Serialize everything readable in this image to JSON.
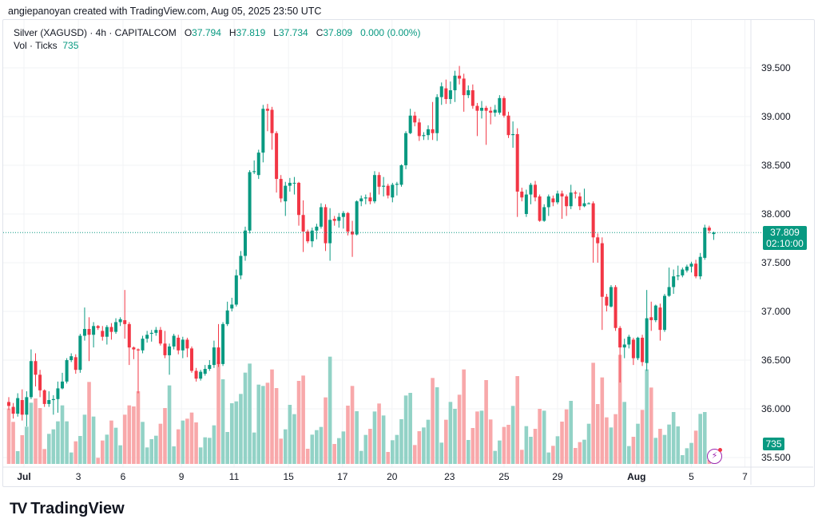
{
  "credit": "angiepanoyan created with TradingView.com, Aug 05, 2025 23:50 UTC",
  "legend": {
    "symbol": "Silver (XAGUSD) · 4h · CAPITALCOM",
    "o_label": "O",
    "o": "37.794",
    "h_label": "H",
    "h": "37.819",
    "l_label": "L",
    "l": "37.734",
    "c_label": "C",
    "c": "37.809",
    "change": "0.000 (0.00%)",
    "vol_label": "Vol · Ticks",
    "vol": "735"
  },
  "price_badge": {
    "price": "37.809",
    "countdown": "02:10:00"
  },
  "volume_badge": "735",
  "logo_text": "TradingView",
  "colors": {
    "up": "#089981",
    "down": "#f23645",
    "up_vol": "#92d2c6",
    "down_vol": "#f8a8aa",
    "grid": "#f2f3f5",
    "last_line": "#089981",
    "lightning": "#9c27b0"
  },
  "chart_data": {
    "type": "candlestick",
    "title": "Silver (XAGUSD) · 4h · CAPITALCOM",
    "ylim": [
      35.5,
      39.75
    ],
    "y_ticks": [
      "39.500",
      "39.000",
      "38.500",
      "38.000",
      "37.500",
      "37.000",
      "36.500",
      "36.000",
      "35.500"
    ],
    "x_ticks": [
      {
        "label": "Jul",
        "bold": true,
        "at_bar": 3.4
      },
      {
        "label": "3",
        "at_bar": 15.6
      },
      {
        "label": "6",
        "at_bar": 25.6
      },
      {
        "label": "9",
        "at_bar": 38.7
      },
      {
        "label": "11",
        "at_bar": 50.5
      },
      {
        "label": "15",
        "at_bar": 62.7
      },
      {
        "label": "17",
        "at_bar": 74.8
      },
      {
        "label": "20",
        "at_bar": 85.9
      },
      {
        "label": "23",
        "at_bar": 98.8
      },
      {
        "label": "25",
        "at_bar": 111
      },
      {
        "label": "29",
        "at_bar": 123
      },
      {
        "label": "Aug",
        "bold": true,
        "at_bar": 140.7
      },
      {
        "label": "5",
        "at_bar": 153
      },
      {
        "label": "7",
        "at_bar": 165
      }
    ],
    "volume_unit": "ticks",
    "last_price": 37.809,
    "candles_fields": [
      "open",
      "high",
      "low",
      "close",
      "volume"
    ],
    "candles": [
      [
        36.07,
        36.12,
        35.99,
        36.03,
        5200
      ],
      [
        36.02,
        36.06,
        35.9,
        35.95,
        3950
      ],
      [
        35.95,
        36.16,
        35.92,
        36.11,
        1200
      ],
      [
        36.09,
        36.2,
        35.88,
        35.94,
        2700
      ],
      [
        35.94,
        36.18,
        35.82,
        36.12,
        3500
      ],
      [
        36.12,
        36.61,
        36.1,
        36.49,
        5750
      ],
      [
        36.49,
        36.57,
        36.23,
        36.35,
        6150
      ],
      [
        36.35,
        36.4,
        36.12,
        36.19,
        5250
      ],
      [
        36.19,
        36.2,
        36.02,
        36.05,
        1400
      ],
      [
        36.05,
        36.18,
        36.02,
        36.09,
        2825
      ],
      [
        36.09,
        36.14,
        35.94,
        36.1,
        3250
      ],
      [
        36.1,
        36.28,
        35.96,
        36.21,
        4000
      ],
      [
        36.21,
        36.37,
        36.2,
        36.28,
        5500
      ],
      [
        36.28,
        36.52,
        36.26,
        36.5,
        4000
      ],
      [
        36.5,
        36.57,
        36.48,
        36.54,
        1075
      ],
      [
        36.53,
        36.56,
        36.36,
        36.4,
        2125
      ],
      [
        36.4,
        36.77,
        36.37,
        36.75,
        2625
      ],
      [
        36.75,
        37.04,
        36.7,
        36.82,
        4625
      ],
      [
        36.82,
        36.94,
        36.49,
        36.76,
        7700
      ],
      [
        36.76,
        36.89,
        36.63,
        36.85,
        4450
      ],
      [
        36.85,
        36.86,
        36.81,
        36.83,
        575
      ],
      [
        36.8,
        36.85,
        36.7,
        36.74,
        2200
      ],
      [
        36.74,
        36.86,
        36.66,
        36.84,
        2750
      ],
      [
        36.84,
        36.88,
        36.71,
        36.79,
        4075
      ],
      [
        36.79,
        36.93,
        36.77,
        36.89,
        3400
      ],
      [
        36.89,
        36.94,
        36.85,
        36.92,
        1750
      ],
      [
        36.91,
        37.22,
        36.72,
        36.87,
        4625
      ],
      [
        36.87,
        36.89,
        36.45,
        36.63,
        5500
      ],
      [
        36.63,
        36.64,
        36.51,
        36.61,
        5400
      ],
      [
        36.61,
        36.62,
        36.16,
        36.6,
        6825
      ],
      [
        36.6,
        36.75,
        36.57,
        36.72,
        3950
      ],
      [
        36.72,
        36.8,
        36.68,
        36.76,
        1550
      ],
      [
        36.77,
        36.81,
        36.69,
        36.78,
        2325
      ],
      [
        36.78,
        36.84,
        36.75,
        36.81,
        2650
      ],
      [
        36.81,
        36.84,
        36.65,
        36.67,
        3775
      ],
      [
        36.67,
        36.8,
        36.52,
        36.55,
        5250
      ],
      [
        36.55,
        36.67,
        36.35,
        36.64,
        7375
      ],
      [
        36.64,
        36.77,
        36.61,
        36.75,
        1650
      ],
      [
        36.73,
        36.76,
        36.56,
        36.6,
        3250
      ],
      [
        36.6,
        36.74,
        36.52,
        36.71,
        4075
      ],
      [
        36.71,
        36.73,
        36.53,
        36.62,
        4250
      ],
      [
        36.62,
        36.64,
        36.37,
        36.39,
        4825
      ],
      [
        36.39,
        36.42,
        36.28,
        36.31,
        3900
      ],
      [
        36.31,
        36.4,
        36.29,
        36.38,
        1550
      ],
      [
        36.36,
        36.45,
        36.34,
        36.41,
        2500
      ],
      [
        36.41,
        36.5,
        36.39,
        36.45,
        2450
      ],
      [
        36.45,
        36.7,
        36.42,
        36.63,
        3625
      ],
      [
        36.63,
        36.87,
        36.43,
        36.46,
        9575
      ],
      [
        36.46,
        36.89,
        36.44,
        36.87,
        7950
      ],
      [
        36.87,
        37.1,
        36.85,
        37.01,
        3000
      ],
      [
        37.03,
        37.14,
        37.0,
        37.07,
        5700
      ],
      [
        37.07,
        37.43,
        37.05,
        37.37,
        5875
      ],
      [
        37.37,
        37.62,
        37.33,
        37.57,
        6575
      ],
      [
        37.57,
        37.87,
        37.52,
        37.83,
        8575
      ],
      [
        37.83,
        38.45,
        37.8,
        38.43,
        9425
      ],
      [
        38.43,
        38.55,
        38.41,
        38.44,
        2950
      ],
      [
        38.4,
        38.66,
        38.36,
        38.63,
        7450
      ],
      [
        38.63,
        39.12,
        38.53,
        39.08,
        7325
      ],
      [
        39.08,
        39.13,
        38.85,
        39.06,
        7625
      ],
      [
        39.07,
        39.1,
        38.66,
        38.83,
        8875
      ],
      [
        38.83,
        38.85,
        38.22,
        38.36,
        7125
      ],
      [
        38.36,
        38.4,
        38.12,
        38.16,
        2375
      ],
      [
        38.13,
        38.33,
        37.98,
        38.29,
        3250
      ],
      [
        38.29,
        38.37,
        38.23,
        38.32,
        5550
      ],
      [
        38.32,
        38.38,
        38.2,
        38.32,
        4675
      ],
      [
        38.32,
        38.33,
        37.88,
        37.99,
        7800
      ],
      [
        37.99,
        38.14,
        37.61,
        37.82,
        8300
      ],
      [
        37.82,
        37.84,
        37.7,
        37.72,
        1425
      ],
      [
        37.72,
        37.86,
        37.66,
        37.83,
        2750
      ],
      [
        37.83,
        37.9,
        37.74,
        37.87,
        3175
      ],
      [
        37.87,
        38.11,
        37.85,
        38.07,
        3475
      ],
      [
        38.07,
        38.1,
        37.62,
        37.7,
        6250
      ],
      [
        37.7,
        38.06,
        37.52,
        37.94,
        10075
      ],
      [
        37.95,
        37.98,
        37.88,
        37.93,
        1875
      ],
      [
        37.93,
        38.01,
        37.86,
        37.97,
        2425
      ],
      [
        37.97,
        38.03,
        37.85,
        38.01,
        3050
      ],
      [
        38.01,
        38.02,
        37.78,
        37.82,
        5475
      ],
      [
        37.82,
        37.93,
        37.56,
        37.79,
        7325
      ],
      [
        37.79,
        38.14,
        37.78,
        38.13,
        4950
      ],
      [
        38.13,
        38.19,
        38.08,
        38.16,
        1225
      ],
      [
        38.16,
        38.2,
        38.1,
        38.17,
        2725
      ],
      [
        38.17,
        38.22,
        38.1,
        38.13,
        3300
      ],
      [
        38.13,
        38.44,
        38.11,
        38.4,
        4925
      ],
      [
        38.4,
        38.43,
        38.2,
        38.28,
        5675
      ],
      [
        38.28,
        38.38,
        38.18,
        38.29,
        4550
      ],
      [
        38.29,
        38.31,
        38.16,
        38.19,
        1125
      ],
      [
        38.17,
        38.32,
        38.12,
        38.3,
        2225
      ],
      [
        38.3,
        38.33,
        38.19,
        38.31,
        2725
      ],
      [
        38.3,
        38.51,
        38.28,
        38.5,
        4200
      ],
      [
        38.5,
        38.85,
        38.46,
        38.83,
        6425
      ],
      [
        38.83,
        39.08,
        38.82,
        39.01,
        6675
      ],
      [
        39.01,
        39.05,
        38.9,
        38.94,
        1775
      ],
      [
        38.94,
        38.98,
        38.75,
        38.8,
        3075
      ],
      [
        38.8,
        38.84,
        38.76,
        38.81,
        3425
      ],
      [
        38.81,
        38.91,
        38.76,
        38.87,
        4150
      ],
      [
        38.87,
        39.15,
        38.76,
        38.83,
        8075
      ],
      [
        38.83,
        39.23,
        38.75,
        39.2,
        7200
      ],
      [
        39.2,
        39.35,
        39.12,
        39.31,
        2000
      ],
      [
        39.29,
        39.38,
        39.13,
        39.18,
        4150
      ],
      [
        39.18,
        39.36,
        39.13,
        39.27,
        5825
      ],
      [
        39.27,
        39.47,
        39.15,
        39.42,
        5175
      ],
      [
        39.42,
        39.52,
        39.33,
        39.39,
        6500
      ],
      [
        39.39,
        39.44,
        39.05,
        39.22,
        8875
      ],
      [
        39.22,
        39.32,
        39.19,
        39.27,
        2250
      ],
      [
        39.27,
        39.33,
        39.08,
        39.11,
        3375
      ],
      [
        39.11,
        39.14,
        38.8,
        39.06,
        4925
      ],
      [
        39.06,
        39.16,
        38.98,
        39.09,
        5000
      ],
      [
        39.09,
        39.11,
        38.71,
        39.06,
        7875
      ],
      [
        39.06,
        39.1,
        38.92,
        39.04,
        4175
      ],
      [
        39.04,
        39.12,
        39.0,
        39.07,
        1225
      ],
      [
        39.04,
        39.22,
        39.02,
        39.19,
        2200
      ],
      [
        39.19,
        39.21,
        38.99,
        39.01,
        3475
      ],
      [
        39.01,
        39.05,
        38.78,
        38.81,
        3675
      ],
      [
        38.81,
        38.95,
        38.68,
        38.82,
        5450
      ],
      [
        38.82,
        38.88,
        37.97,
        38.23,
        8250
      ],
      [
        38.23,
        38.27,
        38.13,
        38.17,
        1325
      ],
      [
        38.0,
        38.25,
        37.97,
        38.2,
        3550
      ],
      [
        38.2,
        38.32,
        38.1,
        38.3,
        2550
      ],
      [
        38.3,
        38.34,
        38.13,
        38.17,
        3300
      ],
      [
        38.18,
        38.2,
        37.92,
        37.93,
        5175
      ],
      [
        37.93,
        38.1,
        37.92,
        38.07,
        5000
      ],
      [
        38.07,
        38.2,
        37.98,
        38.18,
        1075
      ],
      [
        38.16,
        38.19,
        38.08,
        38.12,
        1700
      ],
      [
        38.12,
        38.24,
        38.1,
        38.21,
        2600
      ],
      [
        38.21,
        38.24,
        37.95,
        38.18,
        3975
      ],
      [
        38.18,
        38.2,
        37.98,
        38.08,
        5125
      ],
      [
        38.08,
        38.3,
        38.05,
        38.22,
        5925
      ],
      [
        38.22,
        38.24,
        38.16,
        38.21,
        1500
      ],
      [
        38.18,
        38.22,
        38.04,
        38.08,
        2050
      ],
      [
        38.08,
        38.26,
        38.07,
        38.11,
        2275
      ],
      [
        38.11,
        38.12,
        38.1,
        38.11,
        3775
      ],
      [
        38.11,
        38.13,
        37.5,
        37.76,
        9500
      ],
      [
        37.76,
        37.8,
        37.5,
        37.7,
        5625
      ],
      [
        37.7,
        37.76,
        36.81,
        37.15,
        8125
      ],
      [
        37.15,
        37.18,
        37.0,
        37.06,
        4375
      ],
      [
        37.05,
        37.27,
        37.04,
        37.25,
        3425
      ],
      [
        37.25,
        37.27,
        36.8,
        36.83,
        4675
      ],
      [
        36.83,
        36.85,
        36.27,
        36.63,
        10250
      ],
      [
        36.63,
        36.72,
        36.52,
        36.66,
        5825
      ],
      [
        36.66,
        36.76,
        36.62,
        36.74,
        1675
      ],
      [
        36.71,
        36.73,
        36.45,
        36.52,
        2550
      ],
      [
        36.52,
        36.74,
        36.5,
        36.73,
        3775
      ],
      [
        36.73,
        36.76,
        36.44,
        36.48,
        5075
      ],
      [
        36.47,
        37.22,
        36.39,
        36.93,
        8875
      ],
      [
        36.94,
        37.1,
        36.8,
        36.91,
        7175
      ],
      [
        36.91,
        37.07,
        36.89,
        37.06,
        2450
      ],
      [
        37.04,
        37.08,
        36.7,
        36.81,
        3300
      ],
      [
        36.81,
        37.18,
        36.79,
        37.16,
        2725
      ],
      [
        37.16,
        37.45,
        37.15,
        37.25,
        3700
      ],
      [
        37.25,
        37.43,
        37.18,
        37.36,
        4875
      ],
      [
        37.36,
        37.47,
        37.32,
        37.37,
        3525
      ],
      [
        37.37,
        37.45,
        37.35,
        37.43,
        825
      ],
      [
        37.42,
        37.48,
        37.4,
        37.46,
        1475
      ],
      [
        37.46,
        37.51,
        37.4,
        37.49,
        1975
      ],
      [
        37.49,
        37.53,
        37.34,
        37.36,
        3125
      ],
      [
        37.36,
        37.6,
        37.33,
        37.56,
        4700
      ],
      [
        37.55,
        37.89,
        37.53,
        37.86,
        4875
      ],
      [
        37.86,
        37.88,
        37.8,
        37.83,
        375
      ],
      [
        37.794,
        37.819,
        37.734,
        37.809,
        735
      ]
    ]
  }
}
